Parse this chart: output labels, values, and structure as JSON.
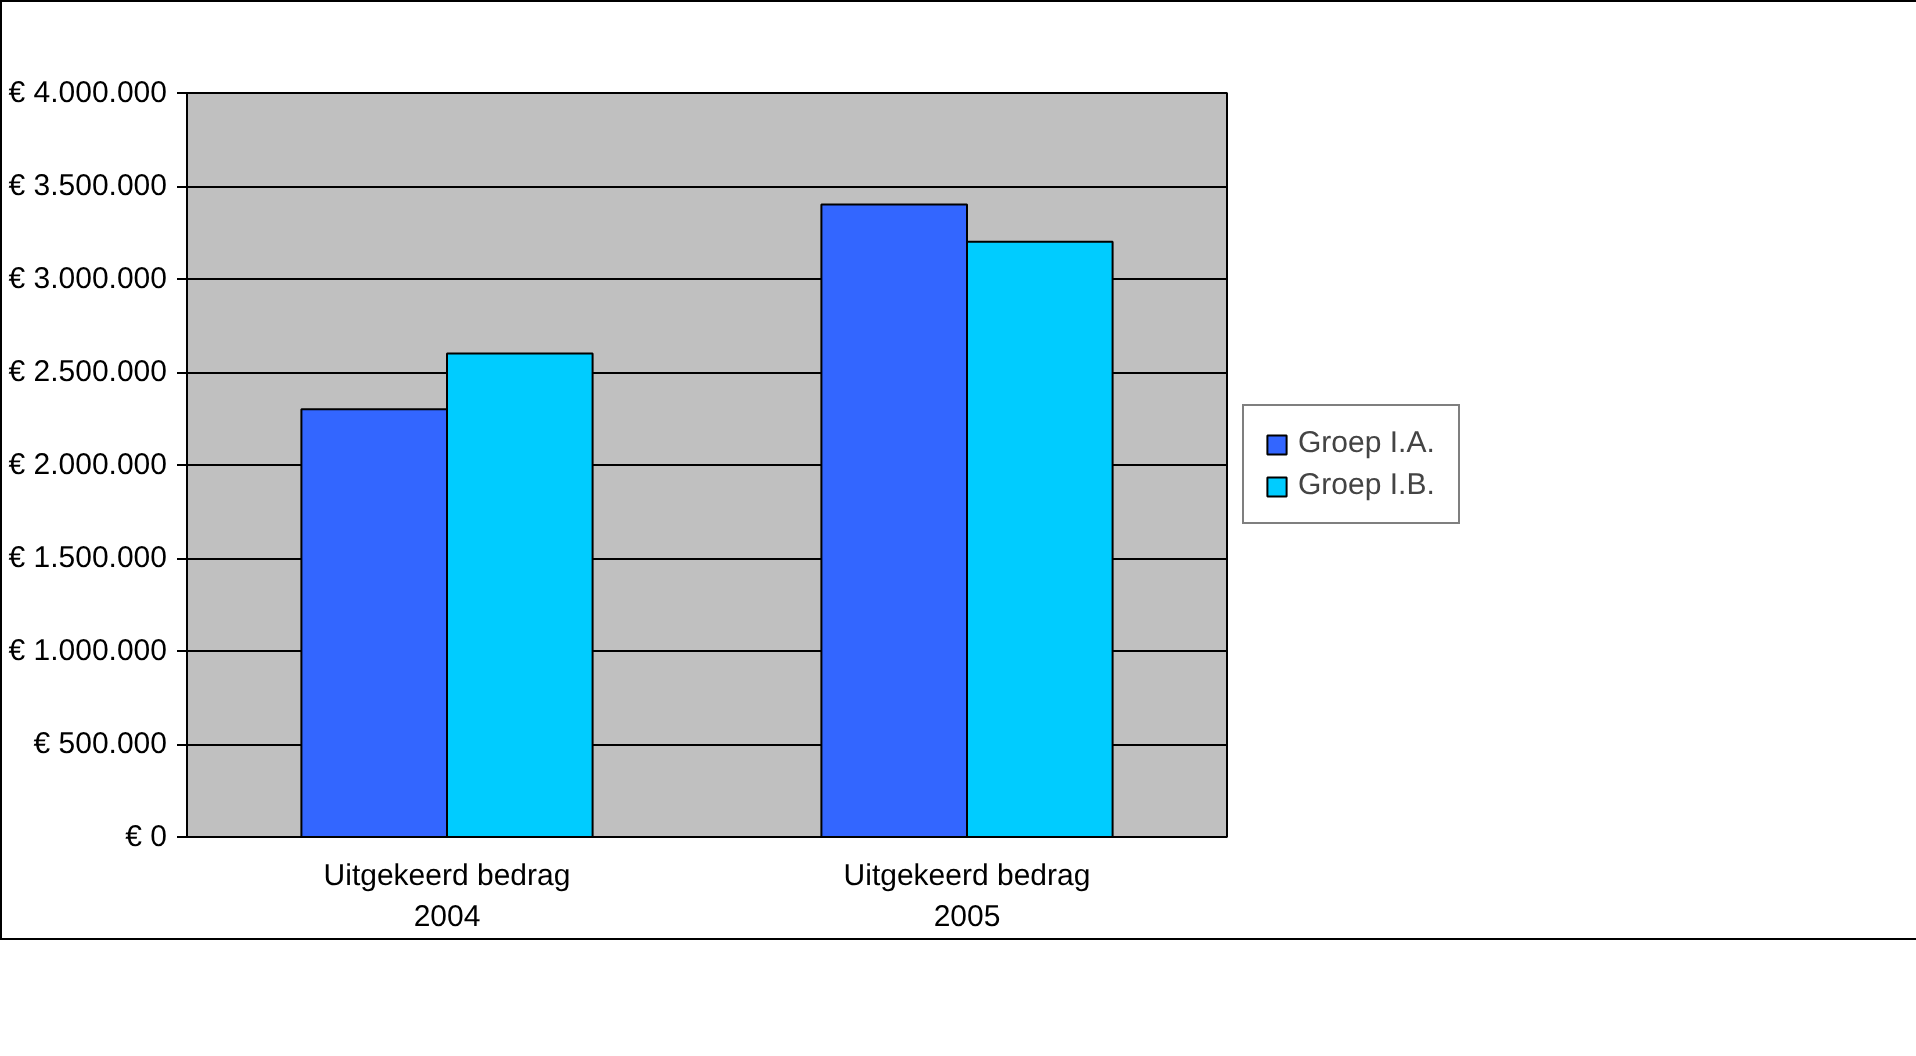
{
  "chart_data": {
    "type": "bar",
    "categories": [
      "Uitgekeerd bedrag\n2004",
      "Uitgekeerd bedrag\n2005"
    ],
    "series": [
      {
        "name": "Groep I.A.",
        "color": "#3366ff",
        "values": [
          2300000,
          3400000
        ]
      },
      {
        "name": "Groep I.B.",
        "color": "#00ccff",
        "values": [
          2600000,
          3200000
        ]
      }
    ],
    "ylim": [
      0,
      4000000
    ],
    "yticks": [
      {
        "value": 0,
        "label": "€ 0"
      },
      {
        "value": 500000,
        "label": "€ 500.000"
      },
      {
        "value": 1000000,
        "label": "€ 1.000.000"
      },
      {
        "value": 1500000,
        "label": "€ 1.500.000"
      },
      {
        "value": 2000000,
        "label": "€ 2.000.000"
      },
      {
        "value": 2500000,
        "label": "€ 2.500.000"
      },
      {
        "value": 3000000,
        "label": "€ 3.000.000"
      },
      {
        "value": 3500000,
        "label": "€ 3.500.000"
      },
      {
        "value": 4000000,
        "label": "€ 4.000.000"
      }
    ],
    "grid": "y",
    "legend": "right"
  }
}
